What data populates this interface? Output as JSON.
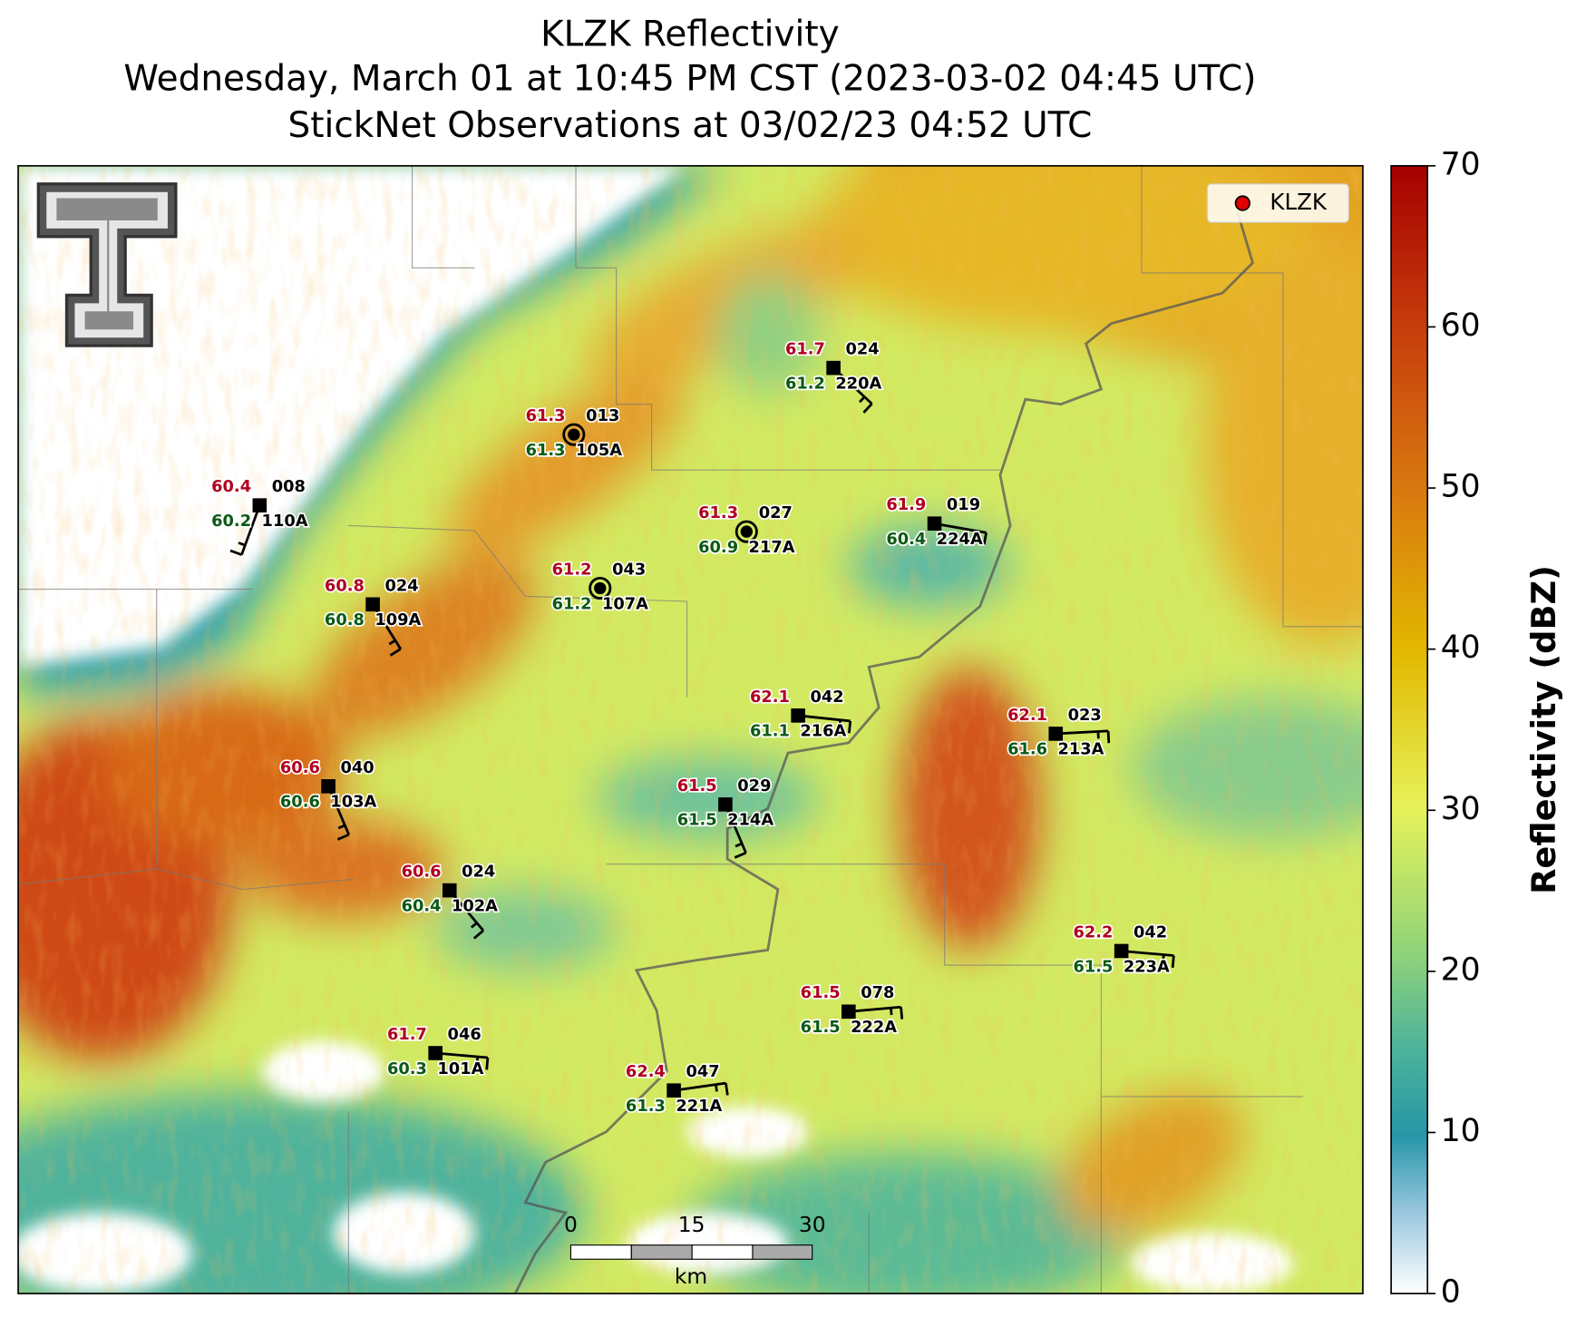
{
  "title": [
    "KLZK Reflectivity",
    "Wednesday, March 01 at 10:45 PM CST (2023-03-02 04:45 UTC)",
    "StickNet Observations at 03/02/23 04:52 UTC"
  ],
  "legend": {
    "label": "KLZK"
  },
  "colorbar": {
    "label": "Reflectivity (dBZ)",
    "ylim": [
      0,
      70
    ],
    "yticks": [
      0,
      10,
      20,
      30,
      40,
      50,
      60,
      70
    ]
  },
  "scale_bar": {
    "ticks": [
      0,
      15,
      30
    ],
    "unit": "km"
  },
  "stations": [
    {
      "id": "110A",
      "temp": 60.4,
      "dew": 60.2,
      "code": "008",
      "wind_dir": 200
    },
    {
      "id": "109A",
      "temp": 60.8,
      "dew": 60.8,
      "code": "024",
      "wind_dir": 148
    },
    {
      "id": "105A",
      "temp": 61.3,
      "dew": 61.3,
      "code": "013",
      "wind_dir": null
    },
    {
      "id": "107A",
      "temp": 61.2,
      "dew": 61.2,
      "code": "043",
      "wind_dir": null
    },
    {
      "id": "217A",
      "temp": 61.3,
      "dew": 60.9,
      "code": "027",
      "wind_dir": null
    },
    {
      "id": "220A",
      "temp": 61.7,
      "dew": 61.2,
      "code": "024",
      "wind_dir": 133
    },
    {
      "id": "224A",
      "temp": 61.9,
      "dew": 60.4,
      "code": "019",
      "wind_dir": 100
    },
    {
      "id": "216A",
      "temp": 62.1,
      "dew": 61.1,
      "code": "042",
      "wind_dir": 96
    },
    {
      "id": "213A",
      "temp": 62.1,
      "dew": 61.6,
      "code": "023",
      "wind_dir": 87
    },
    {
      "id": "103A",
      "temp": 60.6,
      "dew": 60.6,
      "code": "040",
      "wind_dir": 157
    },
    {
      "id": "214A",
      "temp": 61.5,
      "dew": 61.5,
      "code": "029",
      "wind_dir": 157
    },
    {
      "id": "102A",
      "temp": 60.6,
      "dew": 60.4,
      "code": "024",
      "wind_dir": 140
    },
    {
      "id": "223A",
      "temp": 62.2,
      "dew": 61.5,
      "code": "042",
      "wind_dir": 95
    },
    {
      "id": "222A",
      "temp": 61.5,
      "dew": 61.5,
      "code": "078",
      "wind_dir": 85
    },
    {
      "id": "101A",
      "temp": 61.7,
      "dew": 60.3,
      "code": "046",
      "wind_dir": 95
    },
    {
      "id": "221A",
      "temp": 62.4,
      "dew": 61.3,
      "code": "047",
      "wind_dir": 82
    }
  ]
}
